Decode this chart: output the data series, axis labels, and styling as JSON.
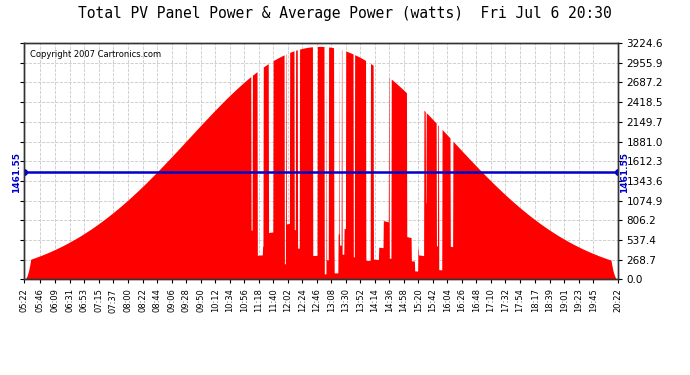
{
  "title": "Total PV Panel Power & Average Power (watts)  Fri Jul 6 20:30",
  "copyright": "Copyright 2007 Cartronics.com",
  "avg_power": 1461.55,
  "ymax": 3224.6,
  "ymin": 0.0,
  "yticks": [
    0.0,
    268.7,
    537.4,
    806.2,
    1074.9,
    1343.6,
    1612.3,
    1881.0,
    2149.7,
    2418.5,
    2687.2,
    2955.9,
    3224.6
  ],
  "fill_color": "#FF0000",
  "bg_color": "#FFFFFF",
  "plot_bg_color": "#FFFFFF",
  "grid_color": "#BBBBBB",
  "avg_line_color": "#0000CC",
  "title_fontsize": 11,
  "avg_label": "1461.55",
  "xtick_labels": [
    "05:22",
    "05:46",
    "06:09",
    "06:31",
    "06:53",
    "07:15",
    "07:37",
    "08:00",
    "08:22",
    "08:44",
    "09:06",
    "09:28",
    "09:50",
    "10:12",
    "10:34",
    "10:56",
    "11:18",
    "11:40",
    "12:02",
    "12:24",
    "12:46",
    "13:08",
    "13:30",
    "13:52",
    "14:14",
    "14:36",
    "14:58",
    "15:20",
    "15:42",
    "16:04",
    "16:26",
    "16:48",
    "17:10",
    "17:32",
    "17:54",
    "18:17",
    "18:39",
    "19:01",
    "19:23",
    "19:45",
    "20:22"
  ],
  "xtick_hours": [
    5.3667,
    5.7667,
    6.15,
    6.5167,
    6.8833,
    7.25,
    7.6167,
    8.0,
    8.3667,
    8.7333,
    9.1,
    9.4667,
    9.8333,
    10.2,
    10.5667,
    10.9333,
    11.3,
    11.6667,
    12.0333,
    12.4,
    12.7667,
    13.1333,
    13.5,
    13.8667,
    14.2333,
    14.6,
    14.9667,
    15.3333,
    15.7,
    16.0667,
    16.4333,
    16.8,
    17.1667,
    17.5333,
    17.9,
    18.2833,
    18.65,
    19.0167,
    19.3833,
    19.75,
    20.3667
  ]
}
